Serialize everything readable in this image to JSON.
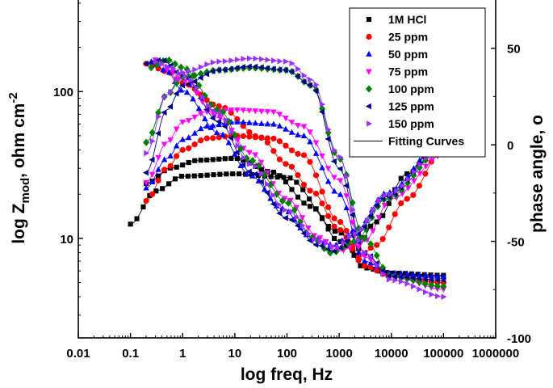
{
  "chart_data": {
    "type": "scatter",
    "title": "",
    "xlabel": "log freq, Hz",
    "ylabel_left_main": "log Z",
    "ylabel_left_sub": "mod",
    "ylabel_left_tail": ", ohm cm",
    "ylabel_left_sup": "-2",
    "ylabel_right": "phase angle, o",
    "x_scale": "log",
    "xlim": [
      0.01,
      1000000
    ],
    "x_ticks": [
      0.01,
      0.1,
      1,
      10,
      100,
      1000,
      10000,
      100000,
      1000000
    ],
    "x_tick_labels": [
      "0.01",
      "0.1",
      "1",
      "10",
      "100",
      "1000",
      "10000",
      "100000",
      "1000000"
    ],
    "y_left_scale": "log",
    "y_left_lim": [
      2.1,
      420
    ],
    "y_left_ticks": [
      10,
      100
    ],
    "y_left_tick_labels": [
      "10",
      "100"
    ],
    "y_right_lim": [
      -100,
      75
    ],
    "y_right_ticks": [
      -100,
      -50,
      0,
      50
    ],
    "y_right_tick_labels": [
      "-100",
      "-50",
      "0",
      "50"
    ],
    "legend_position": "top-right",
    "series": [
      {
        "name": "1M HCl",
        "color": "#000000",
        "marker": "square",
        "modulus": [
          [
            0.1,
            12.5
          ],
          [
            0.3,
            21
          ],
          [
            1,
            26.5
          ],
          [
            10,
            27.5
          ],
          [
            100,
            26
          ],
          [
            1000,
            11
          ],
          [
            3000,
            6.3
          ],
          [
            10000,
            5.8
          ],
          [
            100000,
            5.6
          ]
        ],
        "phase": [
          [
            0.2,
            -20
          ],
          [
            0.6,
            -12
          ],
          [
            2,
            -8
          ],
          [
            10,
            -7
          ],
          [
            50,
            -14
          ],
          [
            300,
            -32
          ],
          [
            1000,
            -50
          ],
          [
            2000,
            -55
          ],
          [
            5000,
            -40
          ],
          [
            20000,
            -15
          ],
          [
            100000,
            0
          ]
        ]
      },
      {
        "name": "25 ppm",
        "color": "#ff0000",
        "marker": "circle",
        "modulus": [
          [
            0.2,
            18
          ],
          [
            0.5,
            30
          ],
          [
            1,
            40
          ],
          [
            3,
            48
          ],
          [
            10,
            50
          ],
          [
            50,
            48
          ],
          [
            200,
            37
          ],
          [
            1000,
            13
          ],
          [
            3000,
            6.5
          ],
          [
            10000,
            5.5
          ],
          [
            100000,
            5.0
          ]
        ],
        "phase": [
          [
            0.2,
            42
          ],
          [
            0.5,
            38
          ],
          [
            1,
            32
          ],
          [
            5,
            20
          ],
          [
            30,
            4
          ],
          [
            100,
            -10
          ],
          [
            300,
            -24
          ],
          [
            1000,
            -44
          ],
          [
            2500,
            -58
          ],
          [
            5000,
            -52
          ],
          [
            20000,
            -28
          ],
          [
            100000,
            -2
          ]
        ]
      },
      {
        "name": "50 ppm",
        "color": "#0000ff",
        "marker": "triangle-up",
        "modulus": [
          [
            0.2,
            22
          ],
          [
            0.5,
            35
          ],
          [
            1,
            47
          ],
          [
            3,
            58
          ],
          [
            10,
            62
          ],
          [
            50,
            60
          ],
          [
            200,
            50
          ],
          [
            1000,
            20
          ],
          [
            3000,
            7
          ],
          [
            10000,
            5.8
          ],
          [
            100000,
            5.5
          ]
        ],
        "phase": [
          [
            0.25,
            43
          ],
          [
            0.5,
            38
          ],
          [
            1,
            28
          ],
          [
            5,
            6
          ],
          [
            20,
            -16
          ],
          [
            80,
            -33
          ],
          [
            300,
            -48
          ],
          [
            800,
            -52
          ],
          [
            2000,
            -45
          ],
          [
            8000,
            -25
          ],
          [
            100000,
            2
          ]
        ]
      },
      {
        "name": "75 ppm",
        "color": "#ff00ff",
        "marker": "triangle-down",
        "modulus": [
          [
            0.2,
            24
          ],
          [
            0.5,
            45
          ],
          [
            1,
            62
          ],
          [
            3,
            73
          ],
          [
            10,
            75
          ],
          [
            50,
            73
          ],
          [
            200,
            58
          ],
          [
            1000,
            25
          ],
          [
            3000,
            7.5
          ],
          [
            10000,
            5.5
          ],
          [
            100000,
            4.5
          ]
        ],
        "phase": [
          [
            0.3,
            44
          ],
          [
            0.6,
            38
          ],
          [
            1,
            33
          ],
          [
            5,
            14
          ],
          [
            20,
            -4
          ],
          [
            100,
            -28
          ],
          [
            400,
            -48
          ],
          [
            1000,
            -55
          ],
          [
            3000,
            -50
          ],
          [
            10000,
            -28
          ],
          [
            100000,
            -5
          ]
        ]
      },
      {
        "name": "100 ppm",
        "color": "#008000",
        "marker": "diamond",
        "modulus": [
          [
            0.2,
            45
          ],
          [
            0.5,
            95
          ],
          [
            1,
            125
          ],
          [
            5,
            140
          ],
          [
            20,
            145
          ],
          [
            100,
            140
          ],
          [
            300,
            110
          ],
          [
            1000,
            35
          ],
          [
            3000,
            10
          ],
          [
            10000,
            5.5
          ],
          [
            100000,
            4.7
          ]
        ],
        "phase": [
          [
            0.25,
            40
          ],
          [
            0.5,
            44
          ],
          [
            1,
            40
          ],
          [
            5,
            18
          ],
          [
            20,
            -8
          ],
          [
            100,
            -30
          ],
          [
            300,
            -48
          ],
          [
            700,
            -56
          ],
          [
            2000,
            -50
          ],
          [
            8000,
            -28
          ],
          [
            100000,
            -2
          ]
        ]
      },
      {
        "name": "125 ppm",
        "color": "#00008b",
        "marker": "triangle-left",
        "modulus": [
          [
            0.2,
            28
          ],
          [
            0.5,
            75
          ],
          [
            1,
            110
          ],
          [
            5,
            140
          ],
          [
            20,
            148
          ],
          [
            100,
            140
          ],
          [
            300,
            110
          ],
          [
            1000,
            30
          ],
          [
            3000,
            8
          ],
          [
            10000,
            5.5
          ],
          [
            100000,
            5.2
          ]
        ],
        "phase": [
          [
            0.2,
            42
          ],
          [
            0.4,
            44
          ],
          [
            1,
            36
          ],
          [
            5,
            12
          ],
          [
            20,
            -14
          ],
          [
            100,
            -38
          ],
          [
            400,
            -52
          ],
          [
            800,
            -55
          ],
          [
            2000,
            -47
          ],
          [
            8000,
            -27
          ],
          [
            100000,
            2
          ]
        ]
      },
      {
        "name": "150 ppm",
        "color": "#9b30ff",
        "marker": "triangle-right",
        "modulus": [
          [
            0.2,
            38
          ],
          [
            0.5,
            95
          ],
          [
            1,
            135
          ],
          [
            5,
            160
          ],
          [
            20,
            168
          ],
          [
            100,
            160
          ],
          [
            300,
            120
          ],
          [
            1000,
            36
          ],
          [
            3000,
            8
          ],
          [
            10000,
            5.2
          ],
          [
            100000,
            4.0
          ]
        ],
        "phase": [
          [
            0.3,
            43
          ],
          [
            0.6,
            40
          ],
          [
            1,
            36
          ],
          [
            5,
            16
          ],
          [
            20,
            -10
          ],
          [
            100,
            -34
          ],
          [
            400,
            -50
          ],
          [
            900,
            -53
          ],
          [
            2000,
            -46
          ],
          [
            8000,
            -26
          ],
          [
            100000,
            -1
          ]
        ]
      }
    ],
    "fitting_curves_label": "Fitting Curves"
  }
}
